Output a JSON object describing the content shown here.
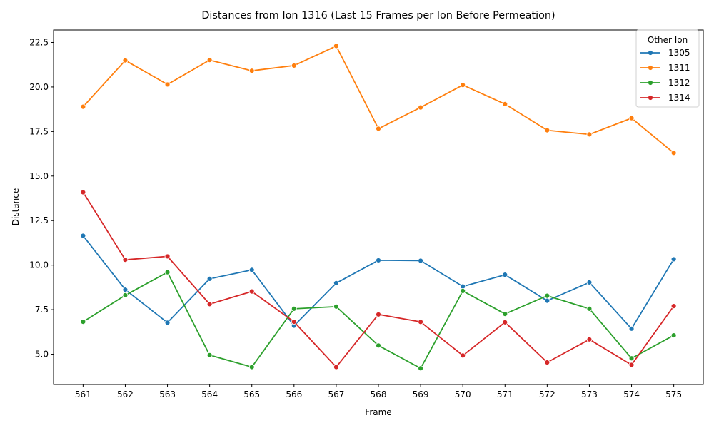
{
  "chart_data": {
    "type": "line",
    "title": "Distances from Ion 1316 (Last 15 Frames per Ion Before Permeation)",
    "xlabel": "Frame",
    "ylabel": "Distance",
    "x": [
      561,
      562,
      563,
      564,
      565,
      566,
      567,
      568,
      569,
      570,
      571,
      572,
      573,
      574,
      575
    ],
    "xlim": [
      560.3,
      575.7
    ],
    "ylim": [
      3.3,
      23.2
    ],
    "yticks": [
      5.0,
      7.5,
      10.0,
      12.5,
      15.0,
      17.5,
      20.0,
      22.5
    ],
    "ytick_labels": [
      "5.0",
      "7.5",
      "10.0",
      "12.5",
      "15.0",
      "17.5",
      "20.0",
      "22.5"
    ],
    "grid": false,
    "legend": {
      "title": "Other Ion",
      "placement": "top-right"
    },
    "series": [
      {
        "name": "1305",
        "color": "#1f77b4",
        "values": [
          11.65,
          8.62,
          6.77,
          9.23,
          9.73,
          6.6,
          8.99,
          10.27,
          10.25,
          8.8,
          9.46,
          8.0,
          9.03,
          6.43,
          10.33
        ]
      },
      {
        "name": "1311",
        "color": "#ff7f0e",
        "values": [
          18.89,
          21.49,
          20.14,
          21.51,
          20.91,
          21.2,
          22.3,
          17.66,
          18.85,
          20.11,
          19.04,
          17.57,
          17.34,
          18.25,
          16.3
        ]
      },
      {
        "name": "1312",
        "color": "#2ca02c",
        "values": [
          6.82,
          8.31,
          9.6,
          4.95,
          4.28,
          7.55,
          7.67,
          5.49,
          4.21,
          8.55,
          7.26,
          8.28,
          7.55,
          4.77,
          6.06
        ]
      },
      {
        "name": "1314",
        "color": "#d62728",
        "values": [
          14.09,
          10.3,
          10.49,
          7.81,
          8.52,
          6.82,
          4.28,
          7.23,
          6.81,
          4.93,
          6.79,
          4.54,
          5.83,
          4.4,
          7.7
        ]
      }
    ]
  }
}
